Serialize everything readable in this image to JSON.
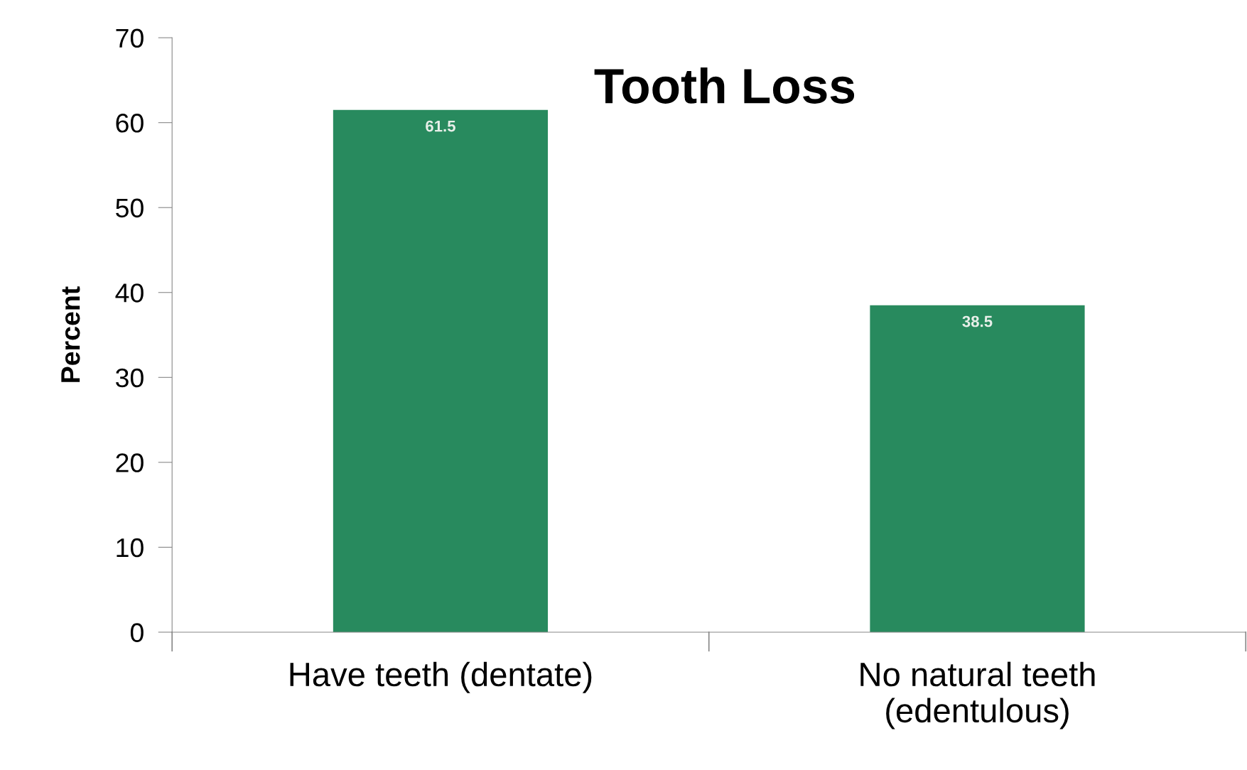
{
  "chart_data": {
    "type": "bar",
    "title": "Tooth Loss",
    "ylabel": "Percent",
    "categories": [
      "Have teeth (dentate)",
      "No natural teeth\n(edentulous)"
    ],
    "values": [
      61.5,
      38.5
    ],
    "color": "#288a5e",
    "ylim": [
      0,
      70
    ],
    "yticks": [
      0,
      10,
      20,
      30,
      40,
      50,
      60,
      70
    ],
    "grid": false,
    "data_labels": true
  }
}
